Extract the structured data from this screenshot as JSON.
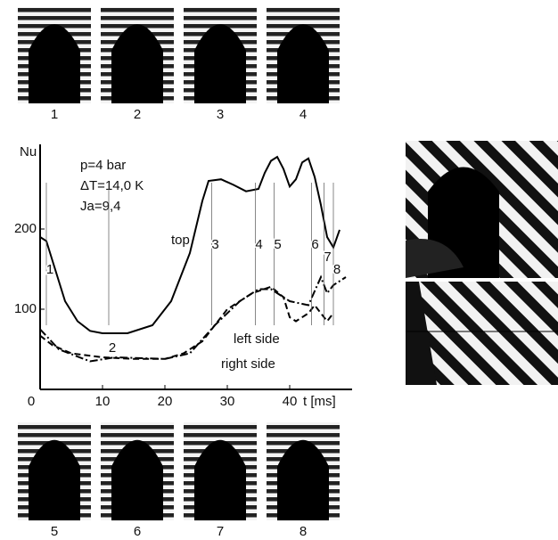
{
  "chart_data": {
    "type": "line",
    "y_label": "Nu",
    "x_label": "t [ms]",
    "annotations": [
      "p=4 bar",
      "ΔT=14,0 K",
      "Ja=9,4"
    ],
    "xlim": [
      0,
      50
    ],
    "ylim": [
      0,
      300
    ],
    "xticks": [
      0,
      10,
      20,
      30,
      40
    ],
    "yticks": [
      100,
      200
    ],
    "series": [
      {
        "name": "top",
        "color": "#000000",
        "style": "solid",
        "x": [
          0,
          1,
          2,
          4,
          6,
          8,
          10,
          14,
          18,
          21,
          24,
          26,
          27,
          29,
          31,
          33,
          35,
          36,
          37,
          38,
          39,
          40,
          41,
          42,
          43,
          44,
          45,
          46,
          47,
          48
        ],
        "values": [
          190,
          185,
          160,
          110,
          85,
          73,
          70,
          70,
          80,
          110,
          170,
          235,
          260,
          262,
          255,
          247,
          250,
          270,
          285,
          290,
          275,
          253,
          262,
          283,
          288,
          265,
          230,
          190,
          177,
          199
        ]
      },
      {
        "name": "left side",
        "color": "#000000",
        "style": "dashed",
        "x": [
          0,
          2,
          5,
          10,
          15,
          20,
          23,
          26,
          30,
          34,
          37,
          39,
          40,
          41,
          43,
          44,
          46,
          47
        ],
        "values": [
          67,
          55,
          45,
          40,
          38,
          38,
          45,
          60,
          100,
          120,
          128,
          115,
          90,
          85,
          95,
          105,
          85,
          95
        ]
      },
      {
        "name": "right side",
        "color": "#000000",
        "style": "dashdot",
        "x": [
          0,
          3,
          8,
          12,
          20,
          24,
          28,
          32,
          35,
          37,
          40,
          43,
          45,
          46,
          47,
          49
        ],
        "values": [
          75,
          50,
          35,
          40,
          38,
          45,
          80,
          110,
          125,
          125,
          110,
          105,
          140,
          120,
          130,
          140
        ]
      }
    ],
    "frames": [
      {
        "label": "1",
        "t": 1
      },
      {
        "label": "2",
        "t": 11
      },
      {
        "label": "3",
        "t": 27.5
      },
      {
        "label": "4",
        "t": 34.5
      },
      {
        "label": "5",
        "t": 37.5
      },
      {
        "label": "6",
        "t": 43.5
      },
      {
        "label": "7",
        "t": 45.5
      },
      {
        "label": "8",
        "t": 47
      }
    ]
  },
  "photos": {
    "top_row": [
      "1",
      "2",
      "3",
      "4"
    ],
    "bottom_row": [
      "5",
      "6",
      "7",
      "8"
    ]
  }
}
